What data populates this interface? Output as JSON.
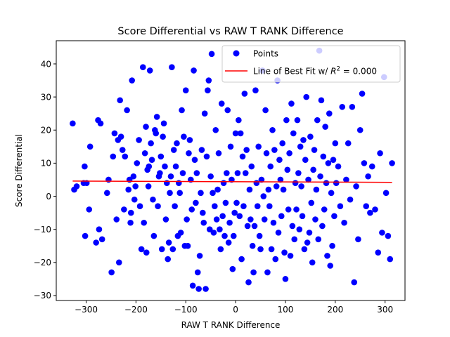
{
  "chart_data": {
    "type": "scatter",
    "title": "Score Differential vs RAW T RANK Difference",
    "xlabel": "RAW T RANK Difference",
    "ylabel": "Score Differential",
    "xlim": [
      -360,
      340
    ],
    "ylim": [
      -31.5,
      47
    ],
    "xticks": [
      -300,
      -200,
      -100,
      0,
      100,
      200,
      300
    ],
    "yticks": [
      -30,
      -20,
      -10,
      0,
      10,
      20,
      30,
      40
    ],
    "grid": false,
    "legend_position": "top-right",
    "colors": {
      "points": "#0000ff",
      "fit_line": "#ff0000"
    },
    "series": [
      {
        "name": "Points",
        "kind": "scatter",
        "points": [
          [
            -327,
            22
          ],
          [
            -324,
            2
          ],
          [
            -319,
            3
          ],
          [
            -305,
            4
          ],
          [
            -303,
            9
          ],
          [
            -302,
            -12
          ],
          [
            -299,
            4
          ],
          [
            -294,
            -4
          ],
          [
            -292,
            15
          ],
          [
            -280,
            -14
          ],
          [
            -276,
            23
          ],
          [
            -274,
            -10
          ],
          [
            -271,
            22
          ],
          [
            -268,
            -13
          ],
          [
            -258,
            1
          ],
          [
            -255,
            5
          ],
          [
            -249,
            -23
          ],
          [
            -246,
            12
          ],
          [
            -243,
            19
          ],
          [
            -239,
            -7
          ],
          [
            -236,
            17
          ],
          [
            -234,
            -20
          ],
          [
            -232,
            29
          ],
          [
            -230,
            18
          ],
          [
            -227,
            14
          ],
          [
            -224,
            -4
          ],
          [
            -222,
            12
          ],
          [
            -218,
            26
          ],
          [
            -215,
            2
          ],
          [
            -213,
            5
          ],
          [
            -211,
            -8
          ],
          [
            -210,
            -5
          ],
          [
            -208,
            35
          ],
          [
            -205,
            6
          ],
          [
            -203,
            -1
          ],
          [
            -201,
            3
          ],
          [
            -198,
            10
          ],
          [
            -194,
            17
          ],
          [
            -192,
            -3
          ],
          [
            -189,
            -16
          ],
          [
            -186,
            39
          ],
          [
            -184,
            -8
          ],
          [
            -182,
            13
          ],
          [
            -180,
            21
          ],
          [
            -179,
            -17
          ],
          [
            -177,
            8
          ],
          [
            -175,
            3
          ],
          [
            -174,
            9
          ],
          [
            -172,
            38
          ],
          [
            -170,
            16
          ],
          [
            -168,
            11
          ],
          [
            -166,
            -1
          ],
          [
            -164,
            -12
          ],
          [
            -162,
            20
          ],
          [
            -160,
            19
          ],
          [
            -158,
            24
          ],
          [
            -156,
            -3
          ],
          [
            -154,
            6
          ],
          [
            -152,
            7
          ],
          [
            -150,
            12
          ],
          [
            -148,
            -16
          ],
          [
            -146,
            18
          ],
          [
            -144,
            22
          ],
          [
            -142,
            9
          ],
          [
            -140,
            -7
          ],
          [
            -138,
            4
          ],
          [
            -136,
            -19
          ],
          [
            -134,
            -14
          ],
          [
            -132,
            1
          ],
          [
            -130,
            6
          ],
          [
            -128,
            39
          ],
          [
            -126,
            -16
          ],
          [
            -124,
            14
          ],
          [
            -122,
            -3
          ],
          [
            -120,
            9
          ],
          [
            -118,
            16
          ],
          [
            -116,
            -12
          ],
          [
            -114,
            4
          ],
          [
            -112,
            1
          ],
          [
            -110,
            -11
          ],
          [
            -108,
            26
          ],
          [
            -106,
            7
          ],
          [
            -104,
            18
          ],
          [
            -102,
            -15
          ],
          [
            -100,
            32
          ],
          [
            -98,
            -7
          ],
          [
            -96,
            -15
          ],
          [
            -94,
            13
          ],
          [
            -92,
            17
          ],
          [
            -90,
            5
          ],
          [
            -88,
            -4
          ],
          [
            -86,
            -27
          ],
          [
            -84,
            38
          ],
          [
            -82,
            11
          ],
          [
            -80,
            -2
          ],
          [
            -78,
            7
          ],
          [
            -76,
            -23
          ],
          [
            -74,
            -28
          ],
          [
            -72,
            -18
          ],
          [
            -70,
            1
          ],
          [
            -68,
            14
          ],
          [
            -66,
            -5
          ],
          [
            -64,
            -8
          ],
          [
            -62,
            25
          ],
          [
            -60,
            -28
          ],
          [
            -58,
            12
          ],
          [
            -56,
            32
          ],
          [
            -54,
            35
          ],
          [
            -52,
            -10
          ],
          [
            -50,
            6
          ],
          [
            -48,
            43
          ],
          [
            -46,
            1
          ],
          [
            -44,
            -11
          ],
          [
            -42,
            -3
          ],
          [
            -40,
            20
          ],
          [
            -38,
            -7
          ],
          [
            -36,
            2
          ],
          [
            -34,
            13
          ],
          [
            -32,
            -10
          ],
          [
            -30,
            -16
          ],
          [
            -28,
            28
          ],
          [
            -26,
            -6
          ],
          [
            -24,
            4
          ],
          [
            -22,
            -12
          ],
          [
            -20,
            -2
          ],
          [
            -18,
            7
          ],
          [
            -16,
            26
          ],
          [
            -14,
            -14
          ],
          [
            -12,
            -8
          ],
          [
            -10,
            15
          ],
          [
            -8,
            5
          ],
          [
            -6,
            -22
          ],
          [
            -4,
            -12
          ],
          [
            -2,
            -5
          ],
          [
            0,
            19
          ],
          [
            2,
            -2
          ],
          [
            4,
            7
          ],
          [
            6,
            23
          ],
          [
            8,
            -6
          ],
          [
            10,
            19
          ],
          [
            12,
            -19
          ],
          [
            14,
            12
          ],
          [
            16,
            -3
          ],
          [
            18,
            31
          ],
          [
            20,
            7
          ],
          [
            22,
            14
          ],
          [
            24,
            -9
          ],
          [
            26,
            -26
          ],
          [
            28,
            2
          ],
          [
            30,
            -7
          ],
          [
            32,
            9
          ],
          [
            34,
            -15
          ],
          [
            36,
            -23
          ],
          [
            38,
            -9
          ],
          [
            40,
            32
          ],
          [
            42,
            4
          ],
          [
            44,
            -3
          ],
          [
            46,
            15
          ],
          [
            48,
            -12
          ],
          [
            50,
            -16
          ],
          [
            52,
            5
          ],
          [
            54,
            38
          ],
          [
            56,
            0
          ],
          [
            58,
            -7
          ],
          [
            60,
            26
          ],
          [
            62,
            13
          ],
          [
            64,
            -23
          ],
          [
            66,
            2
          ],
          [
            68,
            -3
          ],
          [
            70,
            9
          ],
          [
            72,
            -16
          ],
          [
            74,
            20
          ],
          [
            76,
            -8
          ],
          [
            78,
            14
          ],
          [
            80,
            -19
          ],
          [
            82,
            3
          ],
          [
            84,
            35
          ],
          [
            86,
            -11
          ],
          [
            88,
            11
          ],
          [
            90,
            5
          ],
          [
            92,
            -6
          ],
          [
            94,
            16
          ],
          [
            96,
            2
          ],
          [
            98,
            -17
          ],
          [
            100,
            -25
          ],
          [
            102,
            23
          ],
          [
            104,
            8
          ],
          [
            106,
            -4
          ],
          [
            108,
            13
          ],
          [
            110,
            -18
          ],
          [
            112,
            28
          ],
          [
            114,
            -9
          ],
          [
            116,
            19
          ],
          [
            118,
            -13
          ],
          [
            120,
            4
          ],
          [
            122,
            -4
          ],
          [
            124,
            23
          ],
          [
            126,
            7
          ],
          [
            128,
            -10
          ],
          [
            130,
            15
          ],
          [
            132,
            3
          ],
          [
            134,
            -6
          ],
          [
            136,
            17
          ],
          [
            138,
            -16
          ],
          [
            140,
            11
          ],
          [
            142,
            30
          ],
          [
            144,
            -14
          ],
          [
            146,
            5
          ],
          [
            148,
            -11
          ],
          [
            150,
            18
          ],
          [
            152,
            -2
          ],
          [
            154,
            -20
          ],
          [
            156,
            8
          ],
          [
            158,
            14
          ],
          [
            160,
            -7
          ],
          [
            162,
            2
          ],
          [
            164,
            23
          ],
          [
            166,
            -13
          ],
          [
            168,
            44
          ],
          [
            170,
            6
          ],
          [
            172,
            29
          ],
          [
            174,
            -9
          ],
          [
            176,
            12
          ],
          [
            178,
            -4
          ],
          [
            180,
            21
          ],
          [
            182,
            4
          ],
          [
            184,
            -18
          ],
          [
            186,
            10
          ],
          [
            188,
            25
          ],
          [
            190,
            -21
          ],
          [
            192,
            1
          ],
          [
            194,
            -15
          ],
          [
            196,
            11
          ],
          [
            198,
            -6
          ],
          [
            200,
            16
          ],
          [
            202,
            4
          ],
          [
            206,
            9
          ],
          [
            210,
            -3
          ],
          [
            214,
            27
          ],
          [
            218,
            -8
          ],
          [
            222,
            5
          ],
          [
            226,
            16
          ],
          [
            230,
            -1
          ],
          [
            234,
            27
          ],
          [
            238,
            -26
          ],
          [
            242,
            3
          ],
          [
            246,
            -13
          ],
          [
            250,
            20
          ],
          [
            254,
            31
          ],
          [
            258,
            10
          ],
          [
            262,
            -3
          ],
          [
            266,
            6
          ],
          [
            270,
            -5
          ],
          [
            274,
            9
          ],
          [
            280,
            -4
          ],
          [
            286,
            -17
          ],
          [
            290,
            13
          ],
          [
            294,
            -11
          ],
          [
            298,
            36
          ],
          [
            302,
            1
          ],
          [
            306,
            -12
          ],
          [
            310,
            -19
          ],
          [
            314,
            10
          ]
        ]
      },
      {
        "name": "Line of Best Fit w/ R^2 = 0.000",
        "kind": "line",
        "points": [
          [
            -327,
            4.6
          ],
          [
            314,
            4.2
          ]
        ]
      }
    ]
  }
}
